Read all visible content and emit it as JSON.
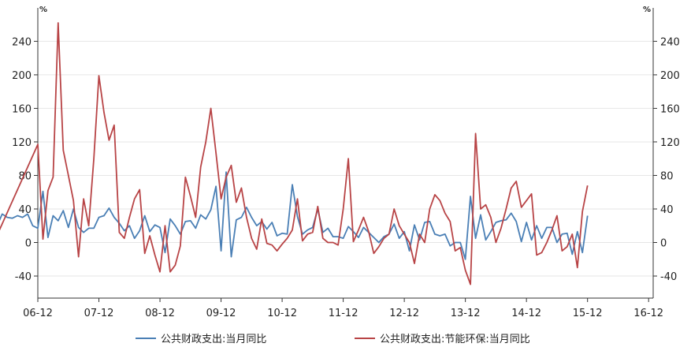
{
  "chart_data": {
    "type": "line",
    "unit_left": "%",
    "unit_right": "%",
    "ylim": [
      -60,
      270
    ],
    "yticks": [
      -40,
      0,
      40,
      80,
      120,
      160,
      200,
      240
    ],
    "xticks": [
      "06-12",
      "07-12",
      "08-12",
      "09-12",
      "10-12",
      "11-12",
      "12-12",
      "13-12",
      "14-12",
      "15-12",
      "16-12"
    ],
    "grid": true,
    "legend_position": "bottom",
    "series": [
      {
        "name": "公共财政支出:当月同比",
        "color": "#4a7fb5",
        "points": [
          [
            -12,
            27
          ],
          [
            -11,
            -14
          ],
          [
            -10,
            63
          ],
          [
            -9,
            15
          ],
          [
            -8,
            20
          ],
          [
            -7,
            34
          ],
          [
            -6,
            30
          ],
          [
            -5,
            29
          ],
          [
            -4,
            32
          ],
          [
            -3,
            30
          ],
          [
            -2,
            34
          ],
          [
            -1,
            20
          ],
          [
            0,
            17
          ],
          [
            1,
            61
          ],
          [
            2,
            6
          ],
          [
            3,
            32
          ],
          [
            4,
            26
          ],
          [
            5,
            38
          ],
          [
            6,
            18
          ],
          [
            7,
            40
          ],
          [
            8,
            18
          ],
          [
            9,
            12
          ],
          [
            10,
            17
          ],
          [
            11,
            17
          ],
          [
            12,
            30
          ],
          [
            13,
            32
          ],
          [
            14,
            41
          ],
          [
            15,
            30
          ],
          [
            16,
            23
          ],
          [
            17,
            14
          ],
          [
            18,
            20
          ],
          [
            19,
            5
          ],
          [
            20,
            14
          ],
          [
            21,
            32
          ],
          [
            22,
            13
          ],
          [
            23,
            21
          ],
          [
            24,
            18
          ],
          [
            25,
            -12
          ],
          [
            26,
            28
          ],
          [
            27,
            20
          ],
          [
            28,
            10
          ],
          [
            29,
            25
          ],
          [
            30,
            26
          ],
          [
            31,
            17
          ],
          [
            32,
            33
          ],
          [
            33,
            28
          ],
          [
            34,
            39
          ],
          [
            35,
            67
          ],
          [
            36,
            -10
          ],
          [
            37,
            84
          ],
          [
            38,
            -17
          ],
          [
            39,
            27
          ],
          [
            40,
            30
          ],
          [
            41,
            42
          ],
          [
            42,
            30
          ],
          [
            43,
            20
          ],
          [
            44,
            25
          ],
          [
            45,
            16
          ],
          [
            46,
            24
          ],
          [
            47,
            8
          ],
          [
            48,
            11
          ],
          [
            49,
            10
          ],
          [
            50,
            69
          ],
          [
            51,
            31
          ],
          [
            52,
            10
          ],
          [
            53,
            15
          ],
          [
            54,
            18
          ],
          [
            55,
            40
          ],
          [
            56,
            12
          ],
          [
            57,
            17
          ],
          [
            58,
            7
          ],
          [
            59,
            7
          ],
          [
            60,
            5
          ],
          [
            61,
            19
          ],
          [
            62,
            13
          ],
          [
            63,
            6
          ],
          [
            64,
            18
          ],
          [
            65,
            12
          ],
          [
            66,
            6
          ],
          [
            67,
            0
          ],
          [
            68,
            7
          ],
          [
            69,
            10
          ],
          [
            70,
            22
          ],
          [
            71,
            5
          ],
          [
            72,
            13
          ],
          [
            73,
            -10
          ],
          [
            74,
            21
          ],
          [
            75,
            3
          ],
          [
            76,
            24
          ],
          [
            77,
            25
          ],
          [
            78,
            10
          ],
          [
            79,
            8
          ],
          [
            80,
            10
          ],
          [
            81,
            -4
          ],
          [
            82,
            0
          ],
          [
            83,
            0
          ],
          [
            84,
            -20
          ],
          [
            85,
            55
          ],
          [
            86,
            5
          ],
          [
            87,
            33
          ],
          [
            88,
            3
          ],
          [
            89,
            13
          ],
          [
            90,
            24
          ],
          [
            91,
            26
          ],
          [
            92,
            27
          ],
          [
            93,
            35
          ],
          [
            94,
            25
          ],
          [
            95,
            1
          ],
          [
            96,
            24
          ],
          [
            97,
            3
          ],
          [
            98,
            20
          ],
          [
            99,
            5
          ],
          [
            100,
            18
          ],
          [
            101,
            18
          ],
          [
            102,
            0
          ],
          [
            103,
            10
          ],
          [
            104,
            11
          ],
          [
            105,
            -14
          ],
          [
            106,
            13
          ],
          [
            107,
            -12
          ],
          [
            108,
            32
          ]
        ]
      },
      {
        "name": "公共财政支出:节能环保:当月同比",
        "color": "#b84446",
        "points": [
          [
            -11,
            -32
          ],
          [
            0,
            117
          ],
          [
            1,
            4
          ],
          [
            2,
            62
          ],
          [
            3,
            78
          ],
          [
            4,
            262
          ],
          [
            5,
            110
          ],
          [
            6,
            80
          ],
          [
            7,
            50
          ],
          [
            8,
            -17
          ],
          [
            9,
            52
          ],
          [
            10,
            20
          ],
          [
            11,
            100
          ],
          [
            12,
            199
          ],
          [
            13,
            155
          ],
          [
            14,
            122
          ],
          [
            15,
            140
          ],
          [
            16,
            12
          ],
          [
            17,
            5
          ],
          [
            18,
            30
          ],
          [
            19,
            52
          ],
          [
            20,
            63
          ],
          [
            21,
            -13
          ],
          [
            22,
            8
          ],
          [
            23,
            -15
          ],
          [
            24,
            -35
          ],
          [
            25,
            20
          ],
          [
            26,
            -35
          ],
          [
            27,
            -27
          ],
          [
            28,
            -4
          ],
          [
            29,
            78
          ],
          [
            30,
            55
          ],
          [
            31,
            30
          ],
          [
            32,
            90
          ],
          [
            33,
            120
          ],
          [
            34,
            160
          ],
          [
            35,
            107
          ],
          [
            36,
            52
          ],
          [
            37,
            78
          ],
          [
            38,
            92
          ],
          [
            39,
            48
          ],
          [
            40,
            65
          ],
          [
            41,
            30
          ],
          [
            42,
            5
          ],
          [
            43,
            -8
          ],
          [
            44,
            28
          ],
          [
            45,
            -1
          ],
          [
            46,
            -3
          ],
          [
            47,
            -10
          ],
          [
            48,
            -2
          ],
          [
            49,
            5
          ],
          [
            50,
            15
          ],
          [
            51,
            52
          ],
          [
            52,
            2
          ],
          [
            53,
            10
          ],
          [
            54,
            12
          ],
          [
            55,
            43
          ],
          [
            56,
            5
          ],
          [
            57,
            0
          ],
          [
            58,
            0
          ],
          [
            59,
            -3
          ],
          [
            60,
            40
          ],
          [
            61,
            100
          ],
          [
            62,
            1
          ],
          [
            63,
            15
          ],
          [
            64,
            30
          ],
          [
            65,
            13
          ],
          [
            66,
            -13
          ],
          [
            67,
            -5
          ],
          [
            68,
            5
          ],
          [
            69,
            10
          ],
          [
            70,
            40
          ],
          [
            71,
            20
          ],
          [
            72,
            10
          ],
          [
            73,
            0
          ],
          [
            74,
            -25
          ],
          [
            75,
            10
          ],
          [
            76,
            0
          ],
          [
            77,
            40
          ],
          [
            78,
            57
          ],
          [
            79,
            50
          ],
          [
            80,
            35
          ],
          [
            81,
            25
          ],
          [
            82,
            -10
          ],
          [
            83,
            -6
          ],
          [
            84,
            -33
          ],
          [
            85,
            -50
          ],
          [
            86,
            130
          ],
          [
            87,
            40
          ],
          [
            88,
            45
          ],
          [
            89,
            30
          ],
          [
            90,
            0
          ],
          [
            91,
            17
          ],
          [
            92,
            40
          ],
          [
            93,
            65
          ],
          [
            94,
            73
          ],
          [
            95,
            42
          ],
          [
            96,
            50
          ],
          [
            97,
            58
          ],
          [
            98,
            -15
          ],
          [
            99,
            -12
          ],
          [
            100,
            0
          ],
          [
            101,
            15
          ],
          [
            102,
            32
          ],
          [
            103,
            -10
          ],
          [
            104,
            -5
          ],
          [
            105,
            10
          ],
          [
            106,
            -30
          ],
          [
            107,
            37
          ],
          [
            108,
            68
          ]
        ]
      }
    ]
  }
}
